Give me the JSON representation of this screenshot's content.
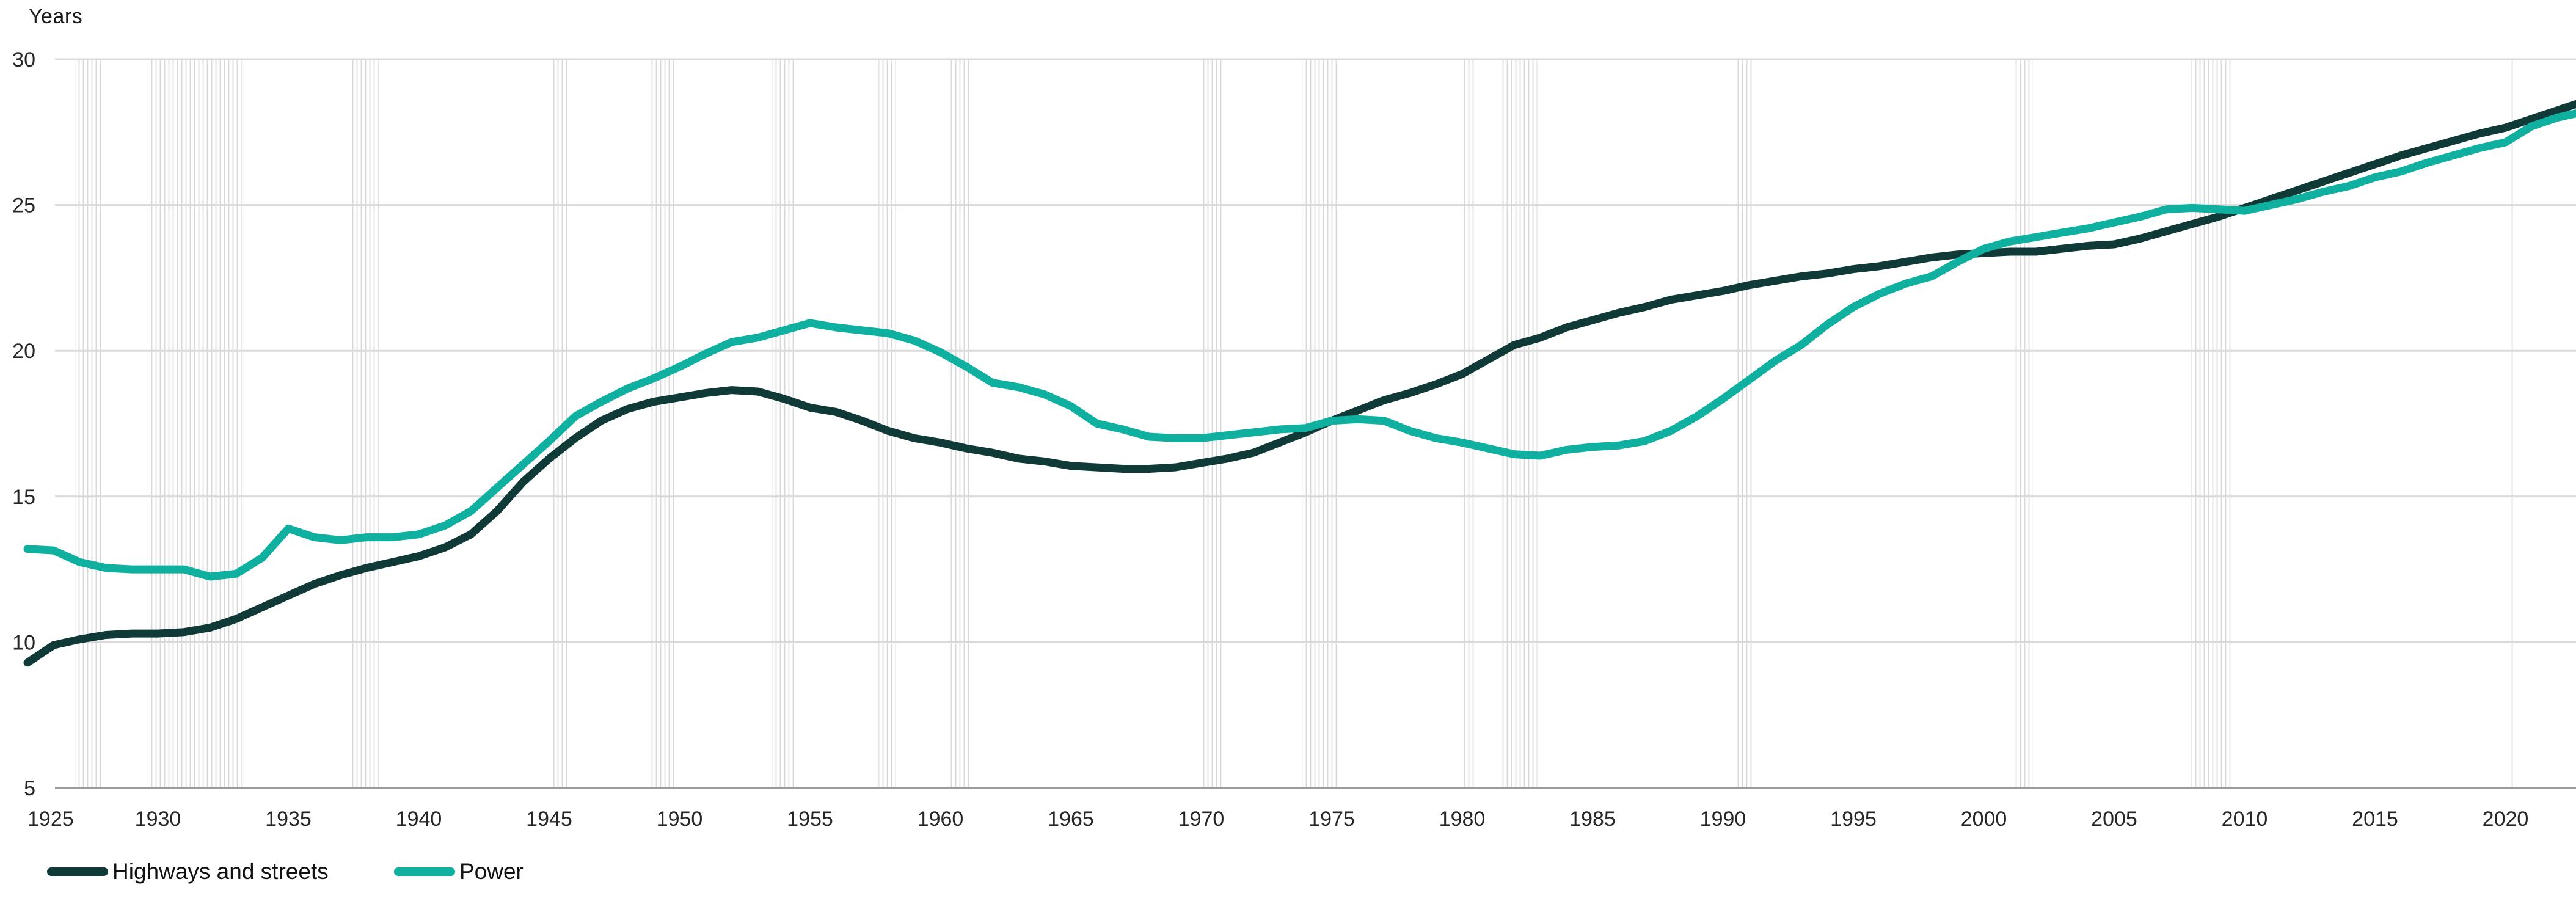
{
  "page": {
    "background": "#ffffff"
  },
  "chart": {
    "y_axis_title": "Years"
  },
  "legend": [
    {
      "label": "Highways and streets",
      "color": "#0f3a37"
    },
    {
      "label": "Power",
      "color": "#10b0a0"
    }
  ],
  "colors": {
    "highways_line": "#0f3a37",
    "power_line": "#10b0a0",
    "gridline": "#d9d9d9",
    "axis_line": "#9b9b9b",
    "recession_hatch": "#d8d8d8",
    "tick_text": "#262626"
  },
  "chart_data": {
    "type": "line",
    "title": "",
    "ylabel": "Years",
    "xlabel": "",
    "ylim": [
      5,
      30
    ],
    "xlim": [
      1925,
      2023
    ],
    "grid": "horizontal",
    "legend_position": "bottom-left",
    "y_ticks": [
      5,
      10,
      15,
      20,
      25,
      30
    ],
    "x_ticks": [
      1925,
      1930,
      1935,
      1940,
      1945,
      1950,
      1955,
      1960,
      1965,
      1970,
      1975,
      1980,
      1985,
      1990,
      1995,
      2000,
      2005,
      2010,
      2015,
      2020
    ],
    "recession_bands": [
      [
        1926.83,
        1927.92
      ],
      [
        1929.63,
        1933.21
      ],
      [
        1937.38,
        1938.46
      ],
      [
        1945.13,
        1945.79
      ],
      [
        1948.88,
        1949.79
      ],
      [
        1953.54,
        1954.38
      ],
      [
        1957.63,
        1958.29
      ],
      [
        1960.29,
        1961.13
      ],
      [
        1969.96,
        1970.88
      ],
      [
        1973.88,
        1975.21
      ],
      [
        1980.04,
        1980.54
      ],
      [
        1981.54,
        1982.88
      ],
      [
        1990.54,
        1991.21
      ],
      [
        2001.21,
        2001.88
      ],
      [
        2007.96,
        2009.46
      ],
      [
        2020.13,
        2020.33
      ]
    ],
    "x": [
      1925,
      1926,
      1927,
      1928,
      1929,
      1930,
      1931,
      1932,
      1933,
      1934,
      1935,
      1936,
      1937,
      1938,
      1939,
      1940,
      1941,
      1942,
      1943,
      1944,
      1945,
      1946,
      1947,
      1948,
      1949,
      1950,
      1951,
      1952,
      1953,
      1954,
      1955,
      1956,
      1957,
      1958,
      1959,
      1960,
      1961,
      1962,
      1963,
      1964,
      1965,
      1966,
      1967,
      1968,
      1969,
      1970,
      1971,
      1972,
      1973,
      1974,
      1975,
      1976,
      1977,
      1978,
      1979,
      1980,
      1981,
      1982,
      1983,
      1984,
      1985,
      1986,
      1987,
      1988,
      1989,
      1990,
      1991,
      1992,
      1993,
      1994,
      1995,
      1996,
      1997,
      1998,
      1999,
      2000,
      2001,
      2002,
      2003,
      2004,
      2005,
      2006,
      2007,
      2008,
      2009,
      2010,
      2011,
      2012,
      2013,
      2014,
      2015,
      2016,
      2017,
      2018,
      2019,
      2020,
      2021,
      2022,
      2023
    ],
    "series": [
      {
        "name": "Highways and streets",
        "color": "#0f3a37",
        "values": [
          9.3,
          9.9,
          10.1,
          10.25,
          10.3,
          10.3,
          10.35,
          10.5,
          10.8,
          11.2,
          11.6,
          12.0,
          12.3,
          12.55,
          12.75,
          12.95,
          13.25,
          13.7,
          14.5,
          15.5,
          16.3,
          17.0,
          17.6,
          18.0,
          18.25,
          18.4,
          18.55,
          18.65,
          18.6,
          18.35,
          18.05,
          17.9,
          17.6,
          17.25,
          17.0,
          16.85,
          16.65,
          16.5,
          16.3,
          16.2,
          16.05,
          16.0,
          15.95,
          15.95,
          16.0,
          16.15,
          16.3,
          16.5,
          16.85,
          17.2,
          17.6,
          17.95,
          18.3,
          18.55,
          18.85,
          19.2,
          19.7,
          20.2,
          20.45,
          20.8,
          21.05,
          21.3,
          21.5,
          21.75,
          21.9,
          22.05,
          22.25,
          22.4,
          22.55,
          22.65,
          22.8,
          22.9,
          23.05,
          23.2,
          23.3,
          23.35,
          23.4,
          23.4,
          23.5,
          23.6,
          23.65,
          23.85,
          24.1,
          24.35,
          24.6,
          24.9,
          25.2,
          25.5,
          25.8,
          26.1,
          26.4,
          26.7,
          26.95,
          27.2,
          27.45,
          27.65,
          27.95,
          28.25,
          28.55
        ]
      },
      {
        "name": "Power",
        "color": "#10b0a0",
        "values": [
          13.2,
          13.15,
          12.75,
          12.55,
          12.5,
          12.5,
          12.5,
          12.25,
          12.35,
          12.9,
          13.9,
          13.6,
          13.5,
          13.6,
          13.6,
          13.7,
          14.0,
          14.5,
          15.3,
          16.1,
          16.9,
          17.75,
          18.25,
          18.7,
          19.05,
          19.45,
          19.9,
          20.3,
          20.45,
          20.7,
          20.95,
          20.8,
          20.7,
          20.6,
          20.35,
          19.95,
          19.45,
          18.9,
          18.75,
          18.5,
          18.1,
          17.5,
          17.3,
          17.05,
          17.0,
          17.0,
          17.1,
          17.2,
          17.3,
          17.35,
          17.6,
          17.65,
          17.6,
          17.25,
          17.0,
          16.85,
          16.65,
          16.45,
          16.4,
          16.6,
          16.7,
          16.75,
          16.9,
          17.25,
          17.75,
          18.35,
          19.0,
          19.65,
          20.2,
          20.9,
          21.5,
          21.95,
          22.3,
          22.55,
          23.05,
          23.5,
          23.75,
          23.9,
          24.05,
          24.2,
          24.4,
          24.6,
          24.85,
          24.9,
          24.85,
          24.8,
          25.0,
          25.2,
          25.45,
          25.65,
          25.95,
          26.15,
          26.45,
          26.7,
          26.95,
          27.15,
          27.7,
          28.0,
          28.2
        ]
      }
    ]
  }
}
